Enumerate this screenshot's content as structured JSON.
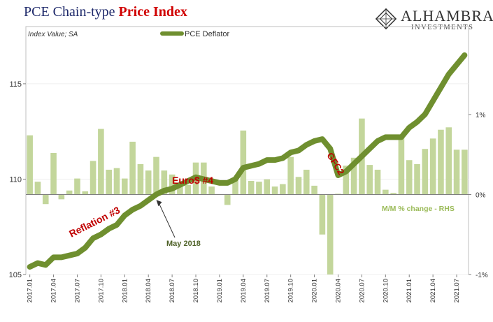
{
  "title": {
    "part1": "PCE Chain-type ",
    "part2": "Price Index"
  },
  "logo": {
    "name": "ALHAMBRA",
    "sub": "INVESTMENTS"
  },
  "colors": {
    "deflator_line": "#6f8f2f",
    "mm_bars": "#c3d69b",
    "title_red": "#d00000",
    "title_navy": "#1f2a6b",
    "annotation_red": "#c00000",
    "annotation_green": "#4f6228",
    "rhs_label": "#9bbb59"
  },
  "chart_data": {
    "type": "bar+line",
    "ylabel_left": "Index Value; SA",
    "legend": {
      "label": "PCE Deflator",
      "placement": "top-center"
    },
    "rhs_label": "M/M % change - RHS",
    "left_axis": {
      "ticks": [
        105,
        110,
        115
      ],
      "ylim": [
        105,
        118
      ]
    },
    "right_axis": {
      "tick_labels": [
        "1%",
        "0%",
        "-1%"
      ],
      "tick_values": [
        1,
        0,
        -1
      ],
      "ylim": [
        -1,
        2.1
      ]
    },
    "x_tick_labels": [
      "2017.01",
      "2017.04",
      "2017.07",
      "2017.10",
      "2018.01",
      "2018.04",
      "2018.07",
      "2018.10",
      "2019.01",
      "2019.04",
      "2019.07",
      "2019.10",
      "2020.01",
      "2020.04",
      "2020.07",
      "2020.10",
      "2021.01",
      "2021.04",
      "2021.07"
    ],
    "months": [
      "2017-01",
      "2017-02",
      "2017-03",
      "2017-04",
      "2017-05",
      "2017-06",
      "2017-07",
      "2017-08",
      "2017-09",
      "2017-10",
      "2017-11",
      "2017-12",
      "2018-01",
      "2018-02",
      "2018-03",
      "2018-04",
      "2018-05",
      "2018-06",
      "2018-07",
      "2018-08",
      "2018-09",
      "2018-10",
      "2018-11",
      "2018-12",
      "2019-01",
      "2019-02",
      "2019-03",
      "2019-04",
      "2019-05",
      "2019-06",
      "2019-07",
      "2019-08",
      "2019-09",
      "2019-10",
      "2019-11",
      "2019-12",
      "2020-01",
      "2020-02",
      "2020-03",
      "2020-04",
      "2020-05",
      "2020-06",
      "2020-07",
      "2020-08",
      "2020-09",
      "2020-10",
      "2020-11",
      "2020-12",
      "2021-01",
      "2021-02",
      "2021-03",
      "2021-04",
      "2021-05",
      "2021-06",
      "2021-07",
      "2021-08"
    ],
    "series": [
      {
        "name": "PCE Deflator",
        "axis": "left",
        "kind": "line",
        "values": [
          105.4,
          105.6,
          105.5,
          105.9,
          105.9,
          106.0,
          106.1,
          106.4,
          106.9,
          107.1,
          107.4,
          107.6,
          108.1,
          108.4,
          108.6,
          108.9,
          109.2,
          109.4,
          109.5,
          109.7,
          109.9,
          110.1,
          110.0,
          109.9,
          109.8,
          109.8,
          110.0,
          110.6,
          110.7,
          110.8,
          111.0,
          111.0,
          111.1,
          111.4,
          111.5,
          111.8,
          112.0,
          112.1,
          111.6,
          110.2,
          110.4,
          110.8,
          111.2,
          111.6,
          112.0,
          112.2,
          112.2,
          112.2,
          112.7,
          113.0,
          113.4,
          114.1,
          114.8,
          115.5,
          116.0,
          116.5
        ]
      },
      {
        "name": "M/M % change",
        "axis": "right",
        "kind": "bar",
        "values": [
          0.74,
          0.16,
          -0.12,
          0.52,
          -0.06,
          0.05,
          0.2,
          0.04,
          0.42,
          0.82,
          0.31,
          0.33,
          0.2,
          0.66,
          0.38,
          0.3,
          0.47,
          0.3,
          0.25,
          0.14,
          0.12,
          0.4,
          0.4,
          0.1,
          0.0,
          -0.13,
          0.2,
          0.8,
          0.17,
          0.16,
          0.19,
          0.1,
          0.13,
          0.47,
          0.22,
          0.31,
          0.11,
          -0.5,
          -1.0,
          0.01,
          0.36,
          0.46,
          0.95,
          0.37,
          0.31,
          0.06,
          0.02,
          0.73,
          0.43,
          0.38,
          0.57,
          0.7,
          0.81,
          0.84,
          0.56,
          0.56
        ]
      }
    ],
    "annotations": [
      {
        "text": "Reflation #3",
        "color": "red"
      },
      {
        "text": "Euro$ #4",
        "color": "red"
      },
      {
        "text": "GFC2",
        "color": "red"
      },
      {
        "text": "May 2018",
        "color": "green",
        "arrow_to": "2018-05"
      }
    ]
  }
}
